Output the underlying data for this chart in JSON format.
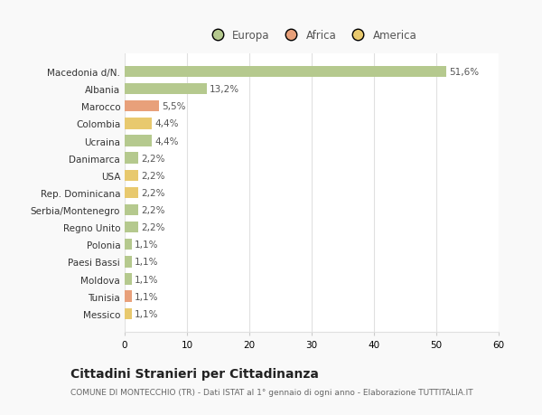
{
  "categories": [
    "Macedonia d/N.",
    "Albania",
    "Marocco",
    "Colombia",
    "Ucraina",
    "Danimarca",
    "USA",
    "Rep. Dominicana",
    "Serbia/Montenegro",
    "Regno Unito",
    "Polonia",
    "Paesi Bassi",
    "Moldova",
    "Tunisia",
    "Messico"
  ],
  "values": [
    51.6,
    13.2,
    5.5,
    4.4,
    4.4,
    2.2,
    2.2,
    2.2,
    2.2,
    2.2,
    1.1,
    1.1,
    1.1,
    1.1,
    1.1
  ],
  "labels": [
    "51,6%",
    "13,2%",
    "5,5%",
    "4,4%",
    "4,4%",
    "2,2%",
    "2,2%",
    "2,2%",
    "2,2%",
    "2,2%",
    "1,1%",
    "1,1%",
    "1,1%",
    "1,1%",
    "1,1%"
  ],
  "colors": [
    "#b5c98e",
    "#b5c98e",
    "#e8a07a",
    "#e8c96e",
    "#b5c98e",
    "#b5c98e",
    "#e8c96e",
    "#e8c96e",
    "#b5c98e",
    "#b5c98e",
    "#b5c98e",
    "#b5c98e",
    "#b5c98e",
    "#e8a07a",
    "#e8c96e"
  ],
  "legend_labels": [
    "Europa",
    "Africa",
    "America"
  ],
  "legend_colors": [
    "#b5c98e",
    "#e8a07a",
    "#e8c96e"
  ],
  "xlim": [
    0,
    60
  ],
  "xticks": [
    0,
    10,
    20,
    30,
    40,
    50,
    60
  ],
  "title": "Cittadini Stranieri per Cittadinanza",
  "subtitle": "COMUNE DI MONTECCHIO (TR) - Dati ISTAT al 1° gennaio di ogni anno - Elaborazione TUTTITALIA.IT",
  "background_color": "#f9f9f9",
  "bar_bg_color": "#ffffff",
  "grid_color": "#e0e0e0"
}
